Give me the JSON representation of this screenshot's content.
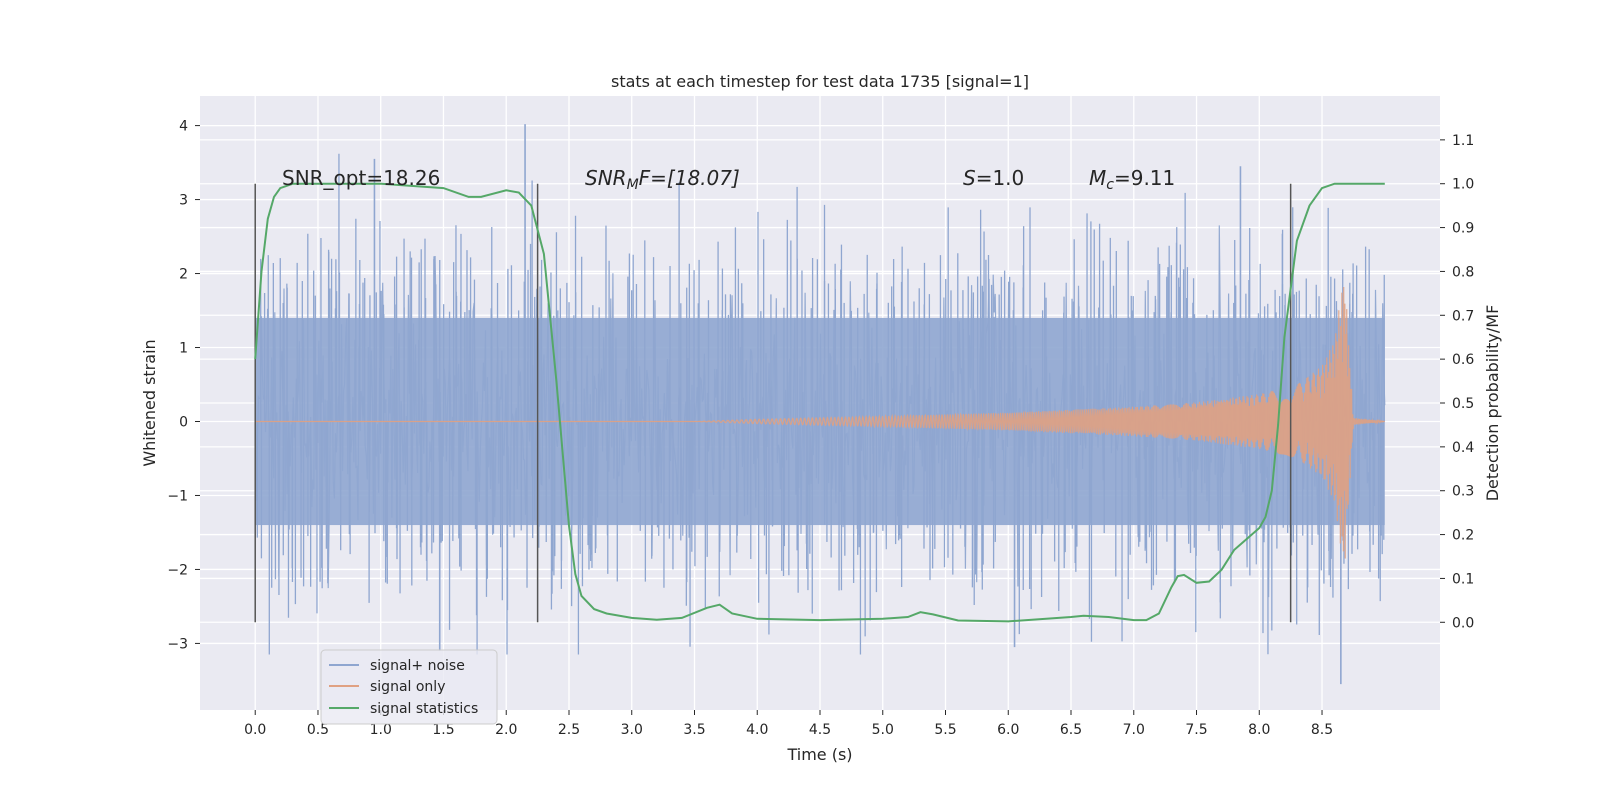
{
  "chart_data": {
    "type": "line",
    "title": "stats at each timestep for test data 1735 [signal=1]",
    "xlabel": "Time (s)",
    "ylabel": "Whitened strain",
    "ylabel_right": "Detection probability/MF",
    "xlim": [
      -0.44,
      9.44
    ],
    "ylim": [
      -3.9,
      4.4
    ],
    "ylim_right": [
      -0.2,
      1.2
    ],
    "x_ticks": [
      "0.0",
      "0.5",
      "1.0",
      "1.5",
      "2.0",
      "2.5",
      "3.0",
      "3.5",
      "4.0",
      "4.5",
      "5.0",
      "5.5",
      "6.0",
      "6.5",
      "7.0",
      "7.5",
      "8.0",
      "8.5"
    ],
    "y_ticks": [
      "4",
      "3",
      "2",
      "1",
      "0",
      "−1",
      "−2",
      "−3"
    ],
    "y_right_ticks": [
      "1.1",
      "1.0",
      "0.9",
      "0.8",
      "0.7",
      "0.6",
      "0.5",
      "0.4",
      "0.3",
      "0.2",
      "0.1",
      "0.0"
    ],
    "annotations": {
      "snr_opt": "SNR_opt=18.26",
      "snr_mf_base": "SNR",
      "snr_mf_sub": "M",
      "snr_mf_rest": "F=[18.07]",
      "s_base": "S",
      "s_rest": "=1.0",
      "mc_base": "M",
      "mc_sub": "c",
      "mc_rest": "=9.11"
    },
    "segment_markers_s": [
      0.0,
      2.25,
      8.25
    ],
    "series": [
      {
        "name": "signal+ noise",
        "color": "#8fa6d0",
        "t_range": [
          0.0,
          9.0
        ],
        "typical_abs": 1.4,
        "min": -3.55,
        "max": 4.02
      },
      {
        "name": "signal only",
        "color": "#e0a182",
        "t_range": [
          0.0,
          9.0
        ],
        "envelope": {
          "t": [
            0.0,
            3.5,
            4.0,
            5.0,
            6.0,
            7.0,
            7.5,
            8.0,
            8.3,
            8.5,
            8.6,
            8.65,
            8.68,
            8.75,
            9.0
          ],
          "amp": [
            0.0,
            0.0,
            0.03,
            0.07,
            0.12,
            0.2,
            0.26,
            0.37,
            0.5,
            0.75,
            1.1,
            1.7,
            2.0,
            0.05,
            0.0
          ]
        }
      },
      {
        "name": "signal statistics",
        "color": "#55a868",
        "t": [
          0.0,
          0.05,
          0.1,
          0.15,
          0.2,
          0.3,
          0.5,
          1.0,
          1.5,
          1.7,
          1.8,
          2.0,
          2.1,
          2.2,
          2.3,
          2.4,
          2.5,
          2.55,
          2.6,
          2.7,
          2.8,
          3.0,
          3.2,
          3.4,
          3.6,
          3.7,
          3.8,
          4.0,
          4.5,
          5.0,
          5.2,
          5.3,
          5.4,
          5.6,
          6.0,
          6.5,
          6.6,
          6.8,
          7.0,
          7.1,
          7.2,
          7.3,
          7.35,
          7.4,
          7.5,
          7.6,
          7.7,
          7.8,
          7.9,
          8.0,
          8.05,
          8.1,
          8.15,
          8.2,
          8.3,
          8.4,
          8.5,
          8.6,
          8.7,
          9.0
        ],
        "values": [
          0.6,
          0.8,
          0.92,
          0.97,
          0.99,
          1.0,
          1.0,
          1.0,
          0.99,
          0.97,
          0.97,
          0.985,
          0.98,
          0.95,
          0.84,
          0.55,
          0.22,
          0.11,
          0.06,
          0.03,
          0.02,
          0.01,
          0.006,
          0.01,
          0.033,
          0.04,
          0.02,
          0.008,
          0.005,
          0.008,
          0.012,
          0.023,
          0.018,
          0.004,
          0.002,
          0.012,
          0.015,
          0.012,
          0.005,
          0.005,
          0.02,
          0.08,
          0.105,
          0.108,
          0.09,
          0.093,
          0.12,
          0.165,
          0.19,
          0.215,
          0.24,
          0.3,
          0.45,
          0.65,
          0.87,
          0.95,
          0.99,
          1.0,
          1.0,
          1.0
        ]
      }
    ],
    "legend_position": "lower-left"
  }
}
